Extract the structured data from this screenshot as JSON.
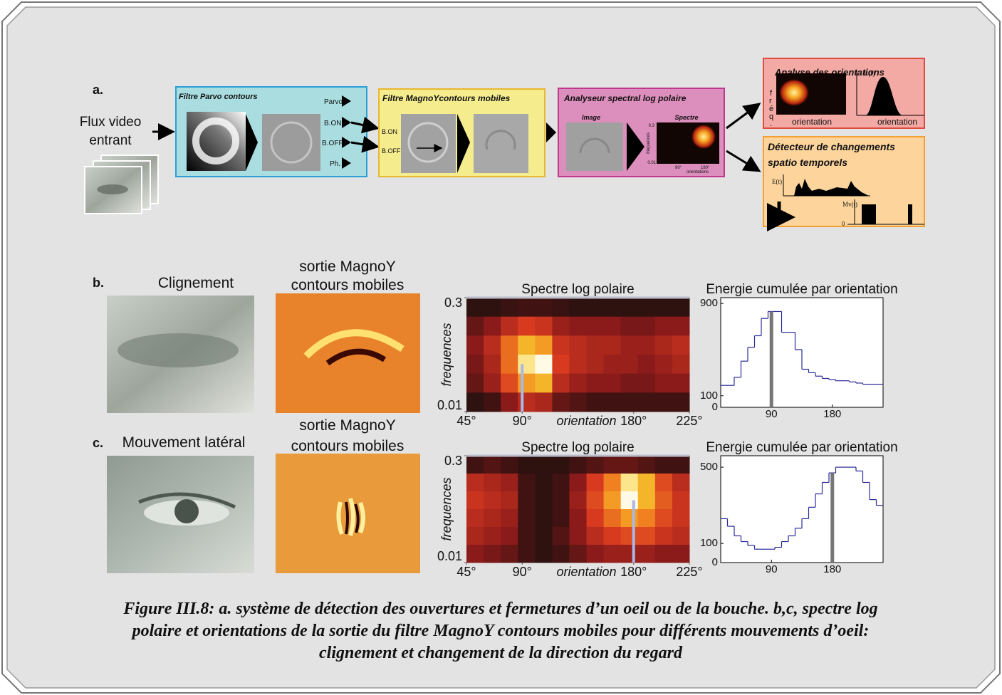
{
  "panel_a": {
    "label": "a.",
    "input": [
      "Flux video",
      "entrant"
    ],
    "parvo": {
      "title": "Filtre Parvo contours",
      "outputs": [
        "Parvo",
        "B.ON",
        "B.OFF",
        "Ph."
      ]
    },
    "magno": {
      "title": "Filtre MagnoYcontours mobiles",
      "inputs": [
        "B.ON",
        "B.OFF"
      ]
    },
    "analyzer": {
      "title": "Analyseur spectral log polaire",
      "image": "Image",
      "spectrum": "Spectre",
      "spectrum_labels": [
        "0.3",
        "fréquences",
        "0.01",
        "90°",
        "180°",
        "orientations"
      ]
    },
    "orientations": {
      "title": "Analyse des orientations",
      "freq_letters": [
        "f",
        "r",
        "é",
        "q",
        "."
      ],
      "x_labels": [
        "orientation",
        "orientation"
      ],
      "y_label": "E(t)"
    },
    "detector": {
      "title": [
        "Détecteur de changements",
        "spatio temporels"
      ],
      "y_labels": [
        "E(t)",
        "Mv(t)"
      ],
      "zero": "0"
    }
  },
  "panel_b": {
    "label": "b.",
    "title": "Clignement",
    "magno_title": [
      "sortie MagnoY",
      "contours mobiles"
    ],
    "spectrum": {
      "type": "heatmap",
      "title": "Spectre log polaire",
      "y_label": "frequences",
      "x_label": "orientation",
      "xlim": [
        45,
        225
      ],
      "xticks": [
        {
          "value": 45,
          "label": "45°"
        },
        {
          "value": 90,
          "label": "90°"
        },
        {
          "value": 180,
          "label": "180°"
        },
        {
          "value": 225,
          "label": "225°"
        }
      ],
      "ylim": [
        0.01,
        0.3
      ],
      "yticks": [
        0.01,
        0.3
      ],
      "y_log": true,
      "marker": 90,
      "intensity": [
        [
          0.05,
          0.05,
          0.08,
          0.1,
          0.1,
          0.08,
          0.05,
          0.05,
          0.05,
          0.05,
          0.05,
          0.05,
          0.05
        ],
        [
          0.2,
          0.3,
          0.45,
          0.55,
          0.5,
          0.35,
          0.3,
          0.3,
          0.3,
          0.25,
          0.25,
          0.3,
          0.3
        ],
        [
          0.3,
          0.45,
          0.7,
          0.85,
          0.8,
          0.5,
          0.45,
          0.4,
          0.4,
          0.35,
          0.35,
          0.4,
          0.45
        ],
        [
          0.25,
          0.4,
          0.7,
          0.95,
          1.0,
          0.55,
          0.45,
          0.4,
          0.35,
          0.35,
          0.3,
          0.35,
          0.4
        ],
        [
          0.2,
          0.35,
          0.6,
          0.8,
          0.85,
          0.45,
          0.35,
          0.3,
          0.3,
          0.25,
          0.25,
          0.3,
          0.3
        ],
        [
          0.05,
          0.1,
          0.3,
          0.45,
          0.4,
          0.2,
          0.15,
          0.1,
          0.1,
          0.1,
          0.1,
          0.1,
          0.1
        ]
      ]
    },
    "energy": {
      "type": "line",
      "title": "Energie cumulée par orientation",
      "color": "#2a2a9a",
      "x": [
        20,
        30,
        40,
        50,
        60,
        70,
        80,
        90,
        100,
        110,
        120,
        130,
        140,
        150,
        160,
        170,
        180,
        190,
        200,
        210,
        220,
        230,
        240,
        250
      ],
      "values": [
        190,
        190,
        260,
        400,
        520,
        620,
        770,
        830,
        830,
        650,
        650,
        500,
        330,
        300,
        270,
        250,
        240,
        230,
        230,
        220,
        210,
        200,
        200,
        200
      ],
      "xlim": [
        15,
        255
      ],
      "xticks": [
        90,
        180
      ],
      "ylim": [
        0,
        950
      ],
      "yticks": [
        0,
        100,
        900
      ],
      "marker": 90
    }
  },
  "panel_c": {
    "label": "c.",
    "title": "Mouvement latéral",
    "magno_title": [
      "sortie MagnoY",
      "contours mobiles"
    ],
    "spectrum": {
      "type": "heatmap",
      "title": "Spectre log polaire",
      "y_label": "frequences",
      "x_label": "orientation",
      "xlim": [
        45,
        225
      ],
      "xticks": [
        {
          "value": 45,
          "label": "45°"
        },
        {
          "value": 90,
          "label": "90°"
        },
        {
          "value": 180,
          "label": "180°"
        },
        {
          "value": 225,
          "label": "225°"
        }
      ],
      "ylim": [
        0.01,
        0.3
      ],
      "yticks": [
        0.01,
        0.3
      ],
      "y_log": true,
      "marker": 180,
      "intensity": [
        [
          0.1,
          0.15,
          0.1,
          0.05,
          0.05,
          0.05,
          0.1,
          0.15,
          0.2,
          0.2,
          0.15,
          0.1,
          0.1
        ],
        [
          0.45,
          0.4,
          0.35,
          0.1,
          0.05,
          0.1,
          0.3,
          0.55,
          0.75,
          0.95,
          0.85,
          0.6,
          0.45
        ],
        [
          0.5,
          0.45,
          0.4,
          0.1,
          0.05,
          0.1,
          0.35,
          0.6,
          0.8,
          1.0,
          0.85,
          0.65,
          0.5
        ],
        [
          0.45,
          0.4,
          0.35,
          0.1,
          0.05,
          0.1,
          0.3,
          0.55,
          0.7,
          0.8,
          0.75,
          0.6,
          0.5
        ],
        [
          0.4,
          0.35,
          0.3,
          0.1,
          0.05,
          0.15,
          0.3,
          0.45,
          0.55,
          0.6,
          0.6,
          0.5,
          0.45
        ],
        [
          0.3,
          0.25,
          0.2,
          0.1,
          0.05,
          0.1,
          0.2,
          0.3,
          0.35,
          0.35,
          0.35,
          0.3,
          0.3
        ]
      ]
    },
    "energy": {
      "type": "line",
      "title": "Energie cumulée par orientation",
      "color": "#2a2a9a",
      "x": [
        20,
        30,
        40,
        50,
        60,
        70,
        80,
        90,
        100,
        110,
        120,
        130,
        140,
        150,
        160,
        170,
        180,
        190,
        200,
        210,
        220,
        230,
        240,
        250
      ],
      "values": [
        230,
        190,
        140,
        110,
        90,
        70,
        70,
        70,
        80,
        110,
        140,
        180,
        230,
        290,
        360,
        420,
        470,
        500,
        500,
        500,
        480,
        420,
        330,
        300
      ],
      "xlim": [
        15,
        255
      ],
      "xticks": [
        90,
        180
      ],
      "ylim": [
        0,
        560
      ],
      "yticks": [
        0,
        100,
        500
      ],
      "marker": 180
    }
  },
  "caption": [
    "Figure III.8: a. système de détection des ouvertures et fermetures d’un oeil ou de la bouche. b,c, spectre log",
    "polaire et orientations de la sortie du filtre MagnoY contours mobiles pour différents mouvements d’oeil:",
    "clignement et changement de la direction du regard"
  ]
}
